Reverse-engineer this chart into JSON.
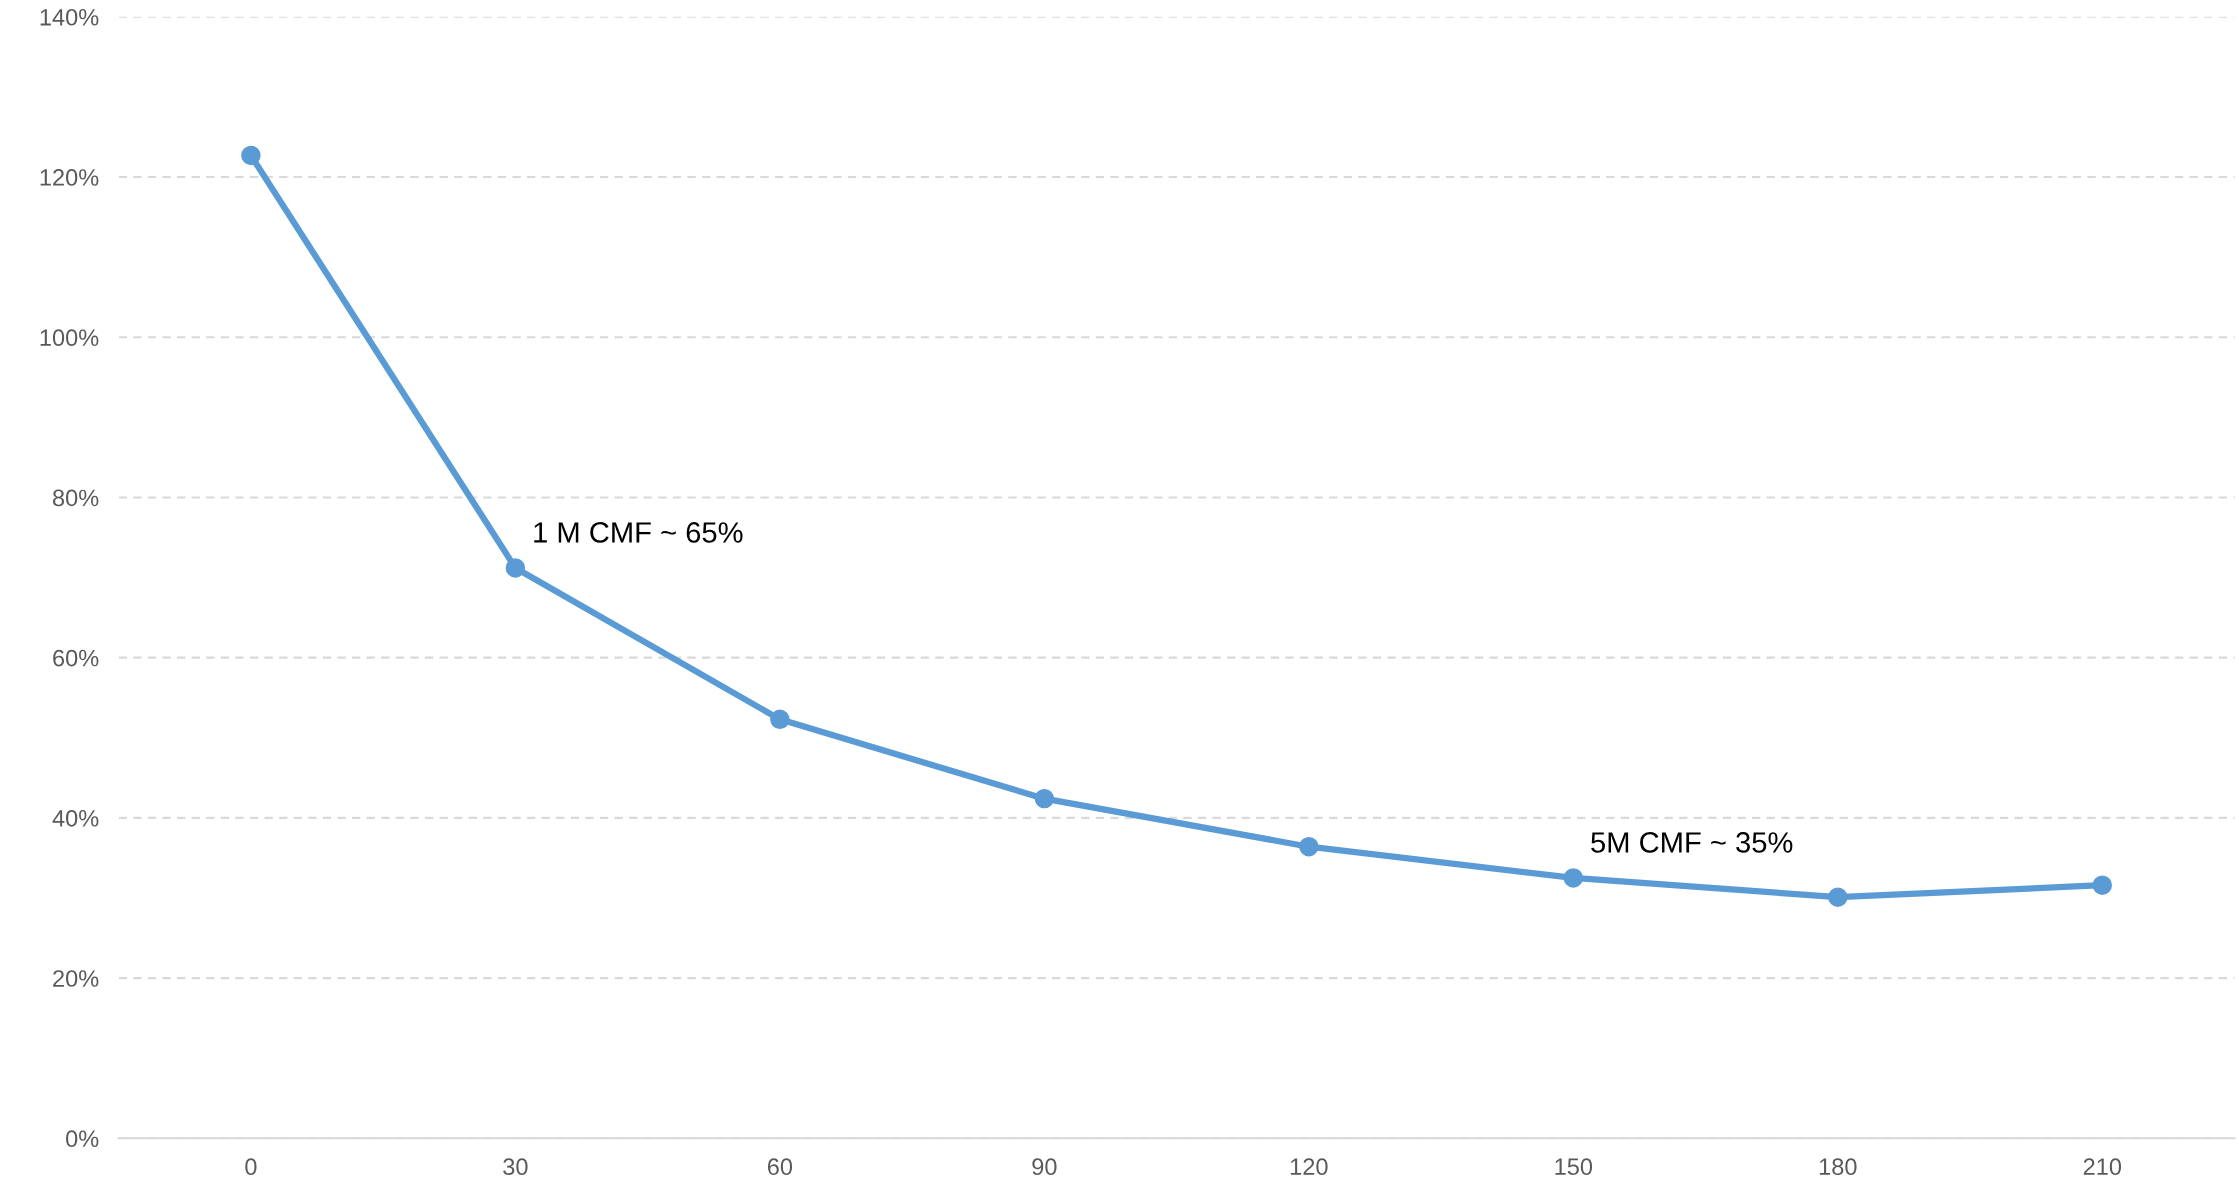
{
  "chart_data": {
    "type": "line",
    "categories": [
      "0",
      "30",
      "60",
      "90",
      "120",
      "150",
      "180",
      "210"
    ],
    "series": [
      {
        "color": "#5b9bd5",
        "values": [
          122.7,
          71.2,
          52.3,
          42.4,
          36.4,
          32.5,
          30.1,
          31.6
        ]
      }
    ],
    "ylim": [
      0,
      140
    ],
    "yticks": [
      {
        "value": 0,
        "label": "0%"
      },
      {
        "value": 20,
        "label": "20%"
      },
      {
        "value": 40,
        "label": "40%"
      },
      {
        "value": 60,
        "label": "60%"
      },
      {
        "value": 80,
        "label": "80%"
      },
      {
        "value": 100,
        "label": "100%"
      },
      {
        "value": 120,
        "label": "120%"
      },
      {
        "value": 140,
        "label": "140%"
      }
    ],
    "grid": "y",
    "marker": "circle",
    "line_style": "solid",
    "legend": false,
    "annotations": [
      {
        "text": "1 M CMF ~ 65%",
        "x": "30",
        "y": 71.2
      },
      {
        "text": "5M CMF ~ 35%",
        "x": "150",
        "y": 32.5
      }
    ]
  }
}
